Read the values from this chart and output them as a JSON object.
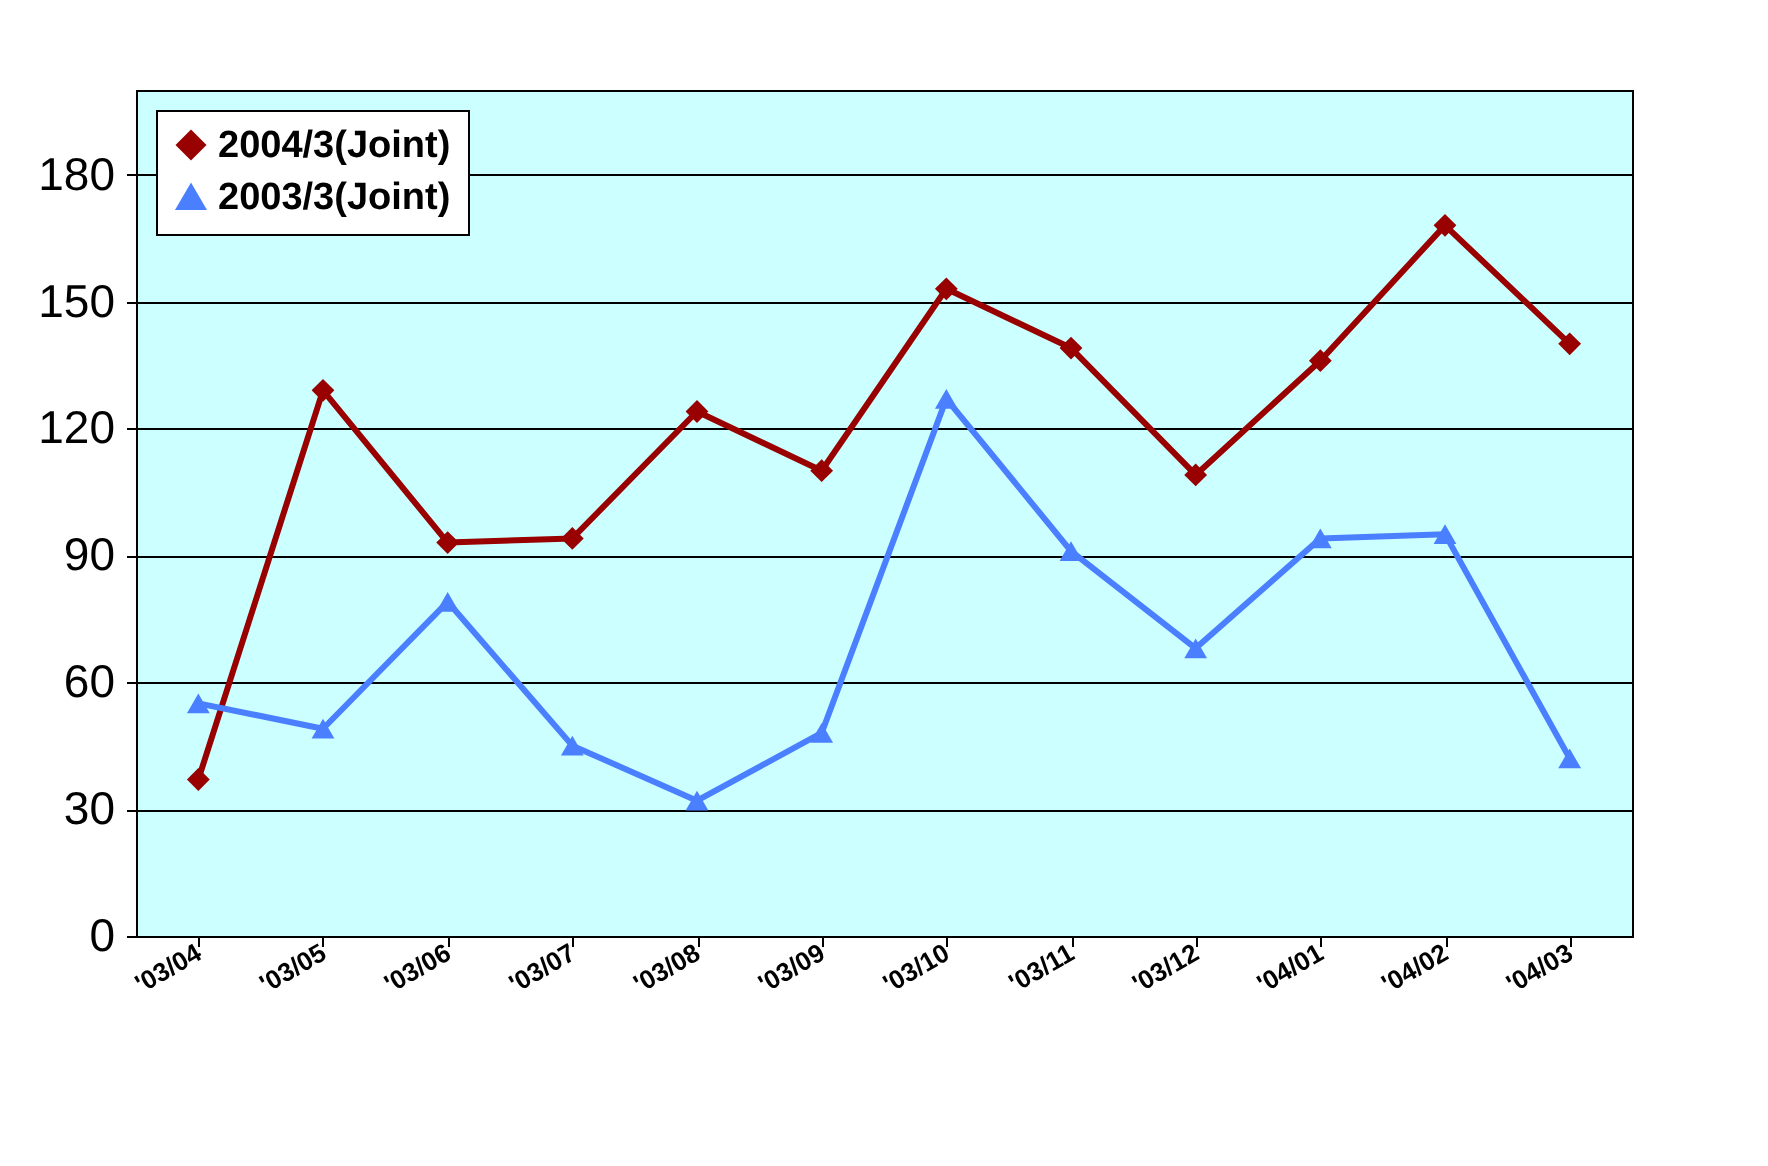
{
  "chart_data": {
    "type": "line",
    "categories": [
      "'03/04",
      "'03/05",
      "'03/06",
      "'03/07",
      "'03/08",
      "'03/09",
      "'03/10",
      "'03/11",
      "'03/12",
      "'04/01",
      "'04/02",
      "'04/03"
    ],
    "series": [
      {
        "name": "2004/3(Joint)",
        "color": "#990000",
        "marker": "diamond",
        "values": [
          37,
          129,
          93,
          94,
          124,
          110,
          153,
          139,
          109,
          136,
          168,
          140
        ]
      },
      {
        "name": "2003/3(Joint)",
        "color": "#4a7fff",
        "marker": "triangle",
        "values": [
          55,
          49,
          79,
          45,
          32,
          48,
          127,
          91,
          68,
          94,
          95,
          42
        ]
      }
    ],
    "ylim": [
      0,
      200
    ],
    "yticks": [
      0,
      30,
      60,
      90,
      120,
      150,
      180
    ],
    "grid": "y",
    "legend": "top left"
  }
}
